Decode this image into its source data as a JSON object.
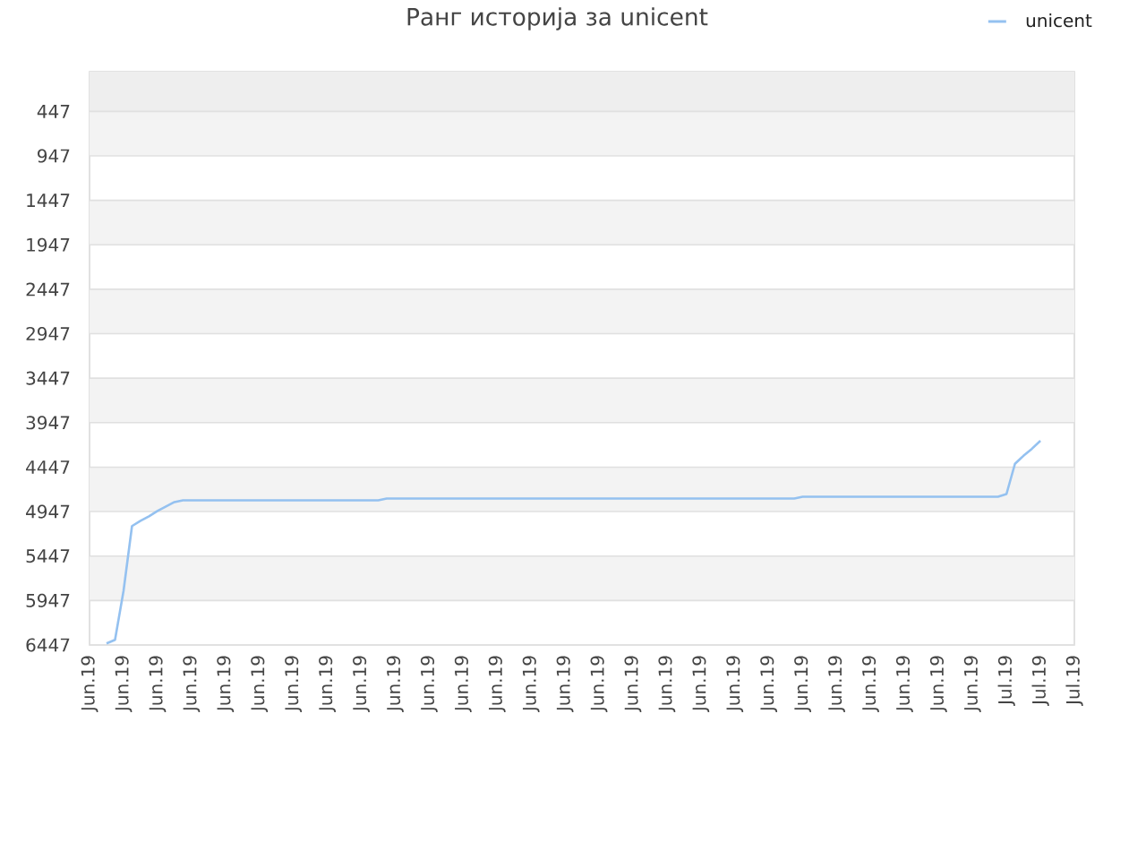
{
  "chart_data": {
    "type": "line",
    "title": "Ранг историја за unicent",
    "categories": [
      "Jun.19",
      null,
      null,
      null,
      "Jun.19",
      null,
      null,
      null,
      "Jun.19",
      null,
      null,
      null,
      "Jun.19",
      null,
      null,
      null,
      "Jun.19",
      null,
      null,
      null,
      "Jun.19",
      null,
      null,
      null,
      "Jun.19",
      null,
      null,
      null,
      "Jun.19",
      null,
      null,
      null,
      "Jun.19",
      null,
      null,
      null,
      "Jun.19",
      null,
      null,
      null,
      "Jun.19",
      null,
      null,
      null,
      "Jun.19",
      null,
      null,
      null,
      "Jun.19",
      null,
      null,
      null,
      "Jun.19",
      null,
      null,
      null,
      "Jun.19",
      null,
      null,
      null,
      "Jun.19",
      null,
      null,
      null,
      "Jun.19",
      null,
      null,
      null,
      "Jun.19",
      null,
      null,
      null,
      "Jun.19",
      null,
      null,
      null,
      "Jun.19",
      null,
      null,
      null,
      "Jun.19",
      null,
      null,
      null,
      "Jun.19",
      null,
      null,
      null,
      "Jun.19",
      null,
      null,
      null,
      "Jun.19",
      null,
      null,
      null,
      "Jun.19",
      null,
      null,
      null,
      "Jun.19",
      null,
      null,
      null,
      "Jun.19",
      null,
      null,
      null,
      "Jul.19",
      null,
      null,
      null,
      "Jul.19",
      null,
      null,
      null,
      "Jul.19"
    ],
    "ylim": [
      6447,
      0
    ],
    "yticks": [
      447,
      947,
      1447,
      1947,
      2447,
      2947,
      3447,
      3947,
      4447,
      4947,
      5447,
      5947,
      6447
    ],
    "series": [
      {
        "name": "unicent",
        "color": "#94c1f0",
        "values": [
          null,
          null,
          6430,
          6390,
          5840,
          5110,
          5050,
          5000,
          4940,
          4890,
          4840,
          4820,
          4820,
          4820,
          4820,
          4820,
          4820,
          4820,
          4820,
          4820,
          4820,
          4820,
          4820,
          4820,
          4820,
          4820,
          4820,
          4820,
          4820,
          4820,
          4820,
          4820,
          4820,
          4820,
          4820,
          4800,
          4800,
          4800,
          4800,
          4800,
          4800,
          4800,
          4800,
          4800,
          4800,
          4800,
          4800,
          4800,
          4800,
          4800,
          4800,
          4800,
          4800,
          4800,
          4800,
          4800,
          4800,
          4800,
          4800,
          4800,
          4800,
          4800,
          4800,
          4800,
          4800,
          4800,
          4800,
          4800,
          4800,
          4800,
          4800,
          4800,
          4800,
          4800,
          4800,
          4800,
          4800,
          4800,
          4800,
          4800,
          4800,
          4800,
          4800,
          4800,
          4780,
          4780,
          4780,
          4780,
          4780,
          4780,
          4780,
          4780,
          4780,
          4780,
          4780,
          4780,
          4780,
          4780,
          4780,
          4780,
          4780,
          4780,
          4780,
          4780,
          4780,
          4780,
          4780,
          4780,
          4750,
          4410,
          4320,
          4240,
          4150,
          null,
          null,
          null,
          null
        ]
      }
    ],
    "bands": [
      {
        "axis": "y",
        "from": 0,
        "to": 447,
        "color": "#eeeeee"
      },
      {
        "axis": "y",
        "from": 447,
        "to": 947,
        "color": "#f3f3f3"
      },
      {
        "axis": "y",
        "from": 1447,
        "to": 1947,
        "color": "#f3f3f3"
      },
      {
        "axis": "y",
        "from": 2447,
        "to": 2947,
        "color": "#f3f3f3"
      },
      {
        "axis": "y",
        "from": 3447,
        "to": 3947,
        "color": "#f3f3f3"
      },
      {
        "axis": "y",
        "from": 4447,
        "to": 4947,
        "color": "#f3f3f3"
      },
      {
        "axis": "y",
        "from": 5447,
        "to": 5947,
        "color": "#f3f3f3"
      }
    ],
    "grid": "y",
    "legend": "top right"
  }
}
